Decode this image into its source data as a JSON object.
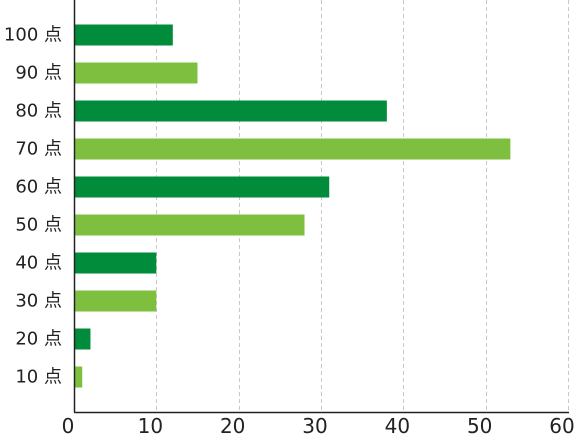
{
  "chart_data": {
    "type": "bar",
    "orientation": "horizontal",
    "title": "",
    "xlabel": "",
    "ylabel": "",
    "categories": [
      "100 点",
      "90 点",
      "80 点",
      "70 点",
      "60 点",
      "50 点",
      "40 点",
      "30 点",
      "20 点",
      "10 点"
    ],
    "values": [
      12,
      15,
      38,
      53,
      31,
      28,
      10,
      10,
      2,
      1
    ],
    "xlim": [
      0,
      60
    ],
    "xticks": [
      0,
      10,
      20,
      30,
      40,
      50,
      60
    ],
    "xtick_labels": [
      "0",
      "10",
      "20",
      "30",
      "40",
      "50",
      "60"
    ],
    "grid": "vertical dashed",
    "legend": "none",
    "colors": {
      "dark_green": "#008c3a",
      "light_green": "#7fbf3f",
      "grid": "#c8c8c8",
      "axis": "#222222",
      "text": "#222222"
    },
    "bar_color_pattern": [
      "dark_green",
      "light_green"
    ]
  }
}
